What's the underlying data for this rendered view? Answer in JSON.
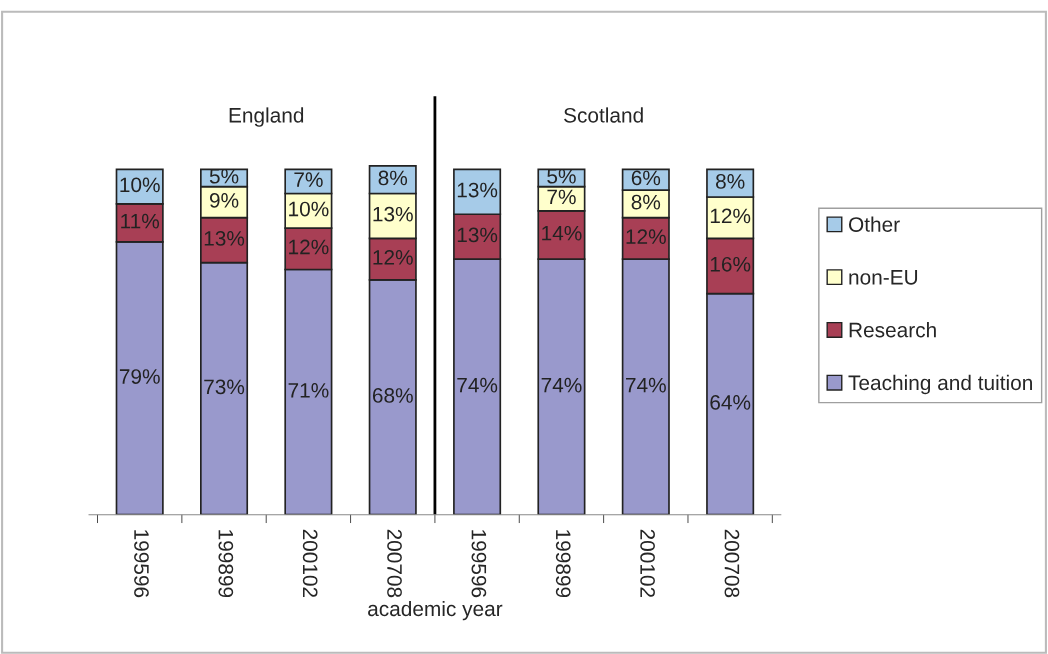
{
  "chart_data": {
    "type": "bar",
    "stacked": true,
    "categories": [
      "199596",
      "199899",
      "200102",
      "200708",
      "199596",
      "199899",
      "200102",
      "200708"
    ],
    "xlabel": "academic year",
    "annotations": [
      "England",
      "Scotland"
    ],
    "series": [
      {
        "name": "Teaching and tuition",
        "color": "#9999cc",
        "values": [
          79,
          73,
          71,
          68,
          74,
          74,
          74,
          64
        ],
        "value_labels": [
          "79%",
          "73%",
          "71%",
          "68%",
          "74%",
          "74%",
          "74%",
          "64%"
        ]
      },
      {
        "name": "Research",
        "color": "#a83f55",
        "values": [
          11,
          13,
          12,
          12,
          13,
          14,
          12,
          16
        ],
        "value_labels": [
          "11%",
          "13%",
          "12%",
          "12%",
          "13%",
          "14%",
          "12%",
          "16%"
        ]
      },
      {
        "name": "non-EU",
        "color": "#ffffcc",
        "values": [
          null,
          9,
          10,
          13,
          null,
          7,
          8,
          12
        ],
        "value_labels": [
          null,
          "9%",
          "10%",
          "13%",
          null,
          "7%",
          "8%",
          "12%"
        ]
      },
      {
        "name": "Other",
        "color": "#a6cbe8",
        "values": [
          10,
          5,
          7,
          8,
          13,
          5,
          6,
          8
        ],
        "value_labels": [
          "10%",
          "5%",
          "7%",
          "8%",
          "13%",
          "5%",
          "6%",
          "8%"
        ]
      }
    ],
    "legend": "right",
    "grid": false
  }
}
